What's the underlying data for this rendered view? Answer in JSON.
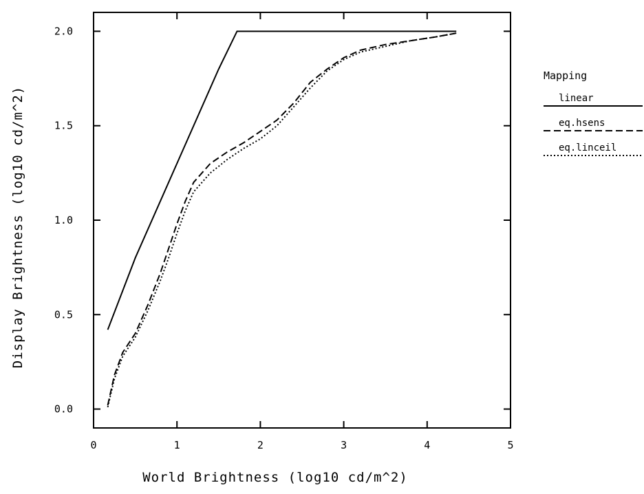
{
  "chart_data": {
    "type": "line",
    "xlabel": "World Brightness (log10 cd/m^2)",
    "ylabel": "Display Brightness (log10 cd/m^2)",
    "xlim": [
      0,
      5
    ],
    "ylim": [
      -0.1,
      2.1
    ],
    "x_ticks": [
      "0",
      "1",
      "2",
      "3",
      "4",
      "5"
    ],
    "y_ticks": [
      "0.0",
      "0.5",
      "1.0",
      "1.5",
      "2.0"
    ],
    "x_tick_values": [
      0,
      1,
      2,
      3,
      4,
      5
    ],
    "y_tick_values": [
      0.0,
      0.5,
      1.0,
      1.5,
      2.0
    ],
    "grid": false,
    "legend": {
      "title": "Mapping",
      "position": "right-outside",
      "entries": [
        "linear",
        "eq.hsens",
        "eq.linceil"
      ]
    },
    "series": [
      {
        "name": "linear",
        "style": "solid",
        "x": [
          0.17,
          0.5,
          1.0,
          1.5,
          1.72,
          2.5,
          3.5,
          4.35
        ],
        "y": [
          0.42,
          0.8,
          1.3,
          1.8,
          2.0,
          2.0,
          2.0,
          2.0
        ]
      },
      {
        "name": "eq.hsens",
        "style": "dashed",
        "x": [
          0.17,
          0.25,
          0.35,
          0.5,
          0.65,
          0.8,
          0.9,
          1.0,
          1.1,
          1.2,
          1.4,
          1.6,
          1.8,
          2.0,
          2.2,
          2.4,
          2.6,
          2.8,
          3.0,
          3.2,
          3.5,
          3.8,
          4.1,
          4.35
        ],
        "y": [
          0.02,
          0.18,
          0.3,
          0.4,
          0.55,
          0.72,
          0.85,
          0.98,
          1.1,
          1.2,
          1.3,
          1.36,
          1.41,
          1.47,
          1.53,
          1.62,
          1.73,
          1.8,
          1.86,
          1.9,
          1.93,
          1.95,
          1.97,
          1.99
        ]
      },
      {
        "name": "eq.linceil",
        "style": "dotted",
        "x": [
          0.17,
          0.25,
          0.35,
          0.5,
          0.65,
          0.8,
          0.9,
          1.0,
          1.1,
          1.2,
          1.4,
          1.6,
          1.8,
          2.0,
          2.2,
          2.4,
          2.6,
          2.8,
          3.0,
          3.2,
          3.5,
          3.8,
          4.1,
          4.35
        ],
        "y": [
          0.01,
          0.16,
          0.28,
          0.38,
          0.52,
          0.68,
          0.8,
          0.93,
          1.05,
          1.15,
          1.25,
          1.32,
          1.38,
          1.43,
          1.5,
          1.6,
          1.7,
          1.79,
          1.85,
          1.89,
          1.92,
          1.95,
          1.97,
          1.99
        ]
      }
    ]
  }
}
